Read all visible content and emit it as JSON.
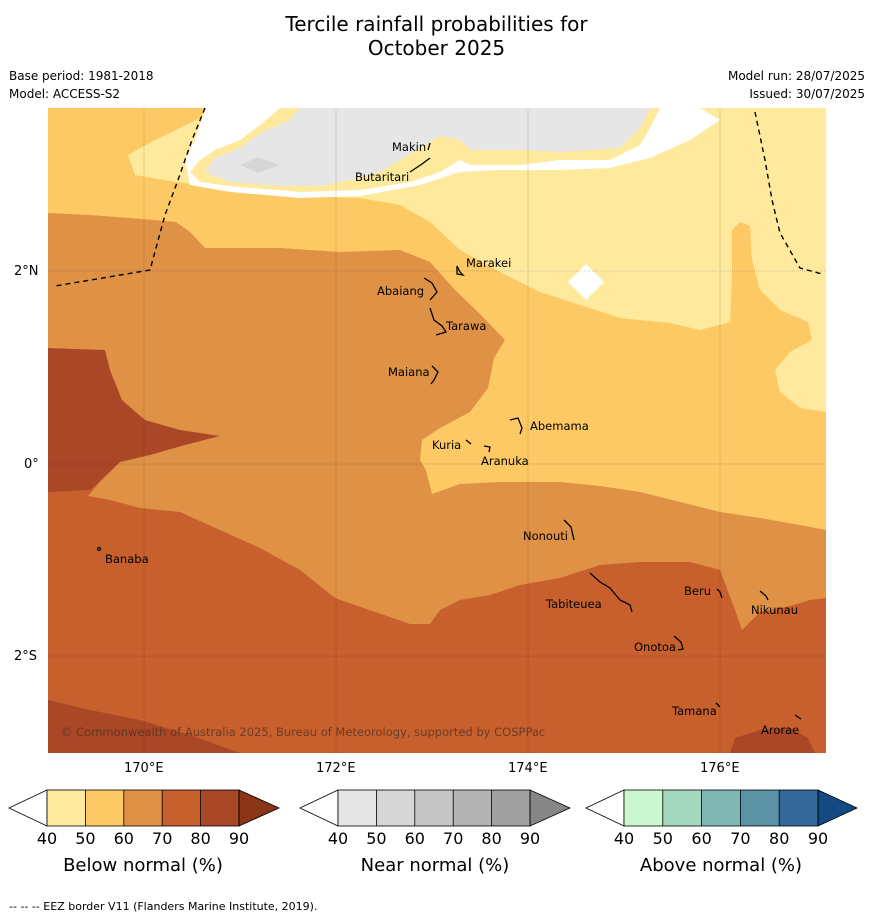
{
  "title_line1": "Tercile rainfall probabilities for",
  "title_line2": "October 2025",
  "base_period": "Base period: 1981-2018",
  "model": "Model: ACCESS-S2",
  "model_run": "Model run: 28/07/2025",
  "issued": "Issued: 30/07/2025",
  "map": {
    "lat_labels": [
      "2°N",
      "0°",
      "2°S"
    ],
    "lon_labels": [
      "170°E",
      "172°E",
      "174°E",
      "176°E"
    ],
    "copyright": "© Commonwealth of Australia 2025, Bureau of Meteorology, supported by COSPPac",
    "places": [
      "Makin",
      "Butaritari",
      "Marakei",
      "Abaiang",
      "Tarawa",
      "Maiana",
      "Abemama",
      "Kuria",
      "Aranuka",
      "Nonouti",
      "Banaba",
      "Beru",
      "Tabiteuea",
      "Nikunau",
      "Onotoa",
      "Tamana",
      "Arorae"
    ],
    "colors": {
      "below_50": "#fee99d",
      "below_60": "#fdc965",
      "below_70": "#df9145",
      "below_80": "#c8602e",
      "below_90": "#aa4726",
      "near_40": "#e6e6e6"
    }
  },
  "legends": [
    {
      "label": "Below normal (%)",
      "ticks": [
        "40",
        "50",
        "60",
        "70",
        "80",
        "90"
      ],
      "colors": [
        "#fee99d",
        "#fdc965",
        "#df9145",
        "#c8602e",
        "#aa4726"
      ],
      "over_color": "#8a3418"
    },
    {
      "label": "Near normal (%)",
      "ticks": [
        "40",
        "50",
        "60",
        "70",
        "80",
        "90"
      ],
      "colors": [
        "#e6e6e6",
        "#d6d6d6",
        "#c6c6c6",
        "#b3b3b3",
        "#a0a0a0"
      ],
      "over_color": "#868686"
    },
    {
      "label": "Above normal (%)",
      "ticks": [
        "40",
        "50",
        "60",
        "70",
        "80",
        "90"
      ],
      "colors": [
        "#cbf6d0",
        "#a3d8bf",
        "#7fb6b1",
        "#5a92a4",
        "#346898"
      ],
      "over_color": "#124a82"
    }
  ],
  "footer": "--  --  -- EEZ border V11 (Flanders Marine Institute, 2019)."
}
